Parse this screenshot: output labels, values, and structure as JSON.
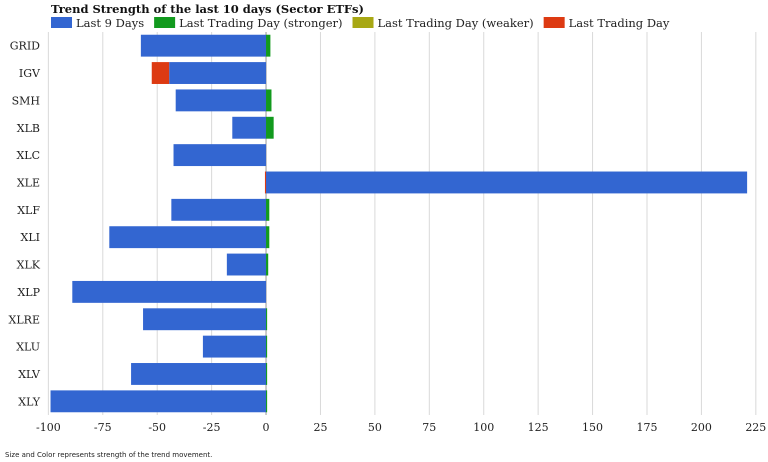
{
  "chart_data": {
    "type": "bar",
    "orientation": "horizontal",
    "stacked": true,
    "title": "Trend Strength of the last 10 days (Sector ETFs)",
    "xlabel": "",
    "ylabel": "",
    "xlim": [
      -102,
      226
    ],
    "xticks": [
      -100,
      -75,
      -50,
      -25,
      0,
      25,
      50,
      75,
      100,
      125,
      150,
      175,
      200,
      225
    ],
    "grid": true,
    "legend_position": "top-left",
    "categories": [
      "GRID",
      "IGV",
      "SMH",
      "XLB",
      "XLC",
      "XLE",
      "XLF",
      "XLI",
      "XLK",
      "XLP",
      "XLRE",
      "XLU",
      "XLV",
      "XLY"
    ],
    "series": [
      {
        "name": "Last 9 Days",
        "color": "#3366d1",
        "values": [
          -57.5,
          -44.5,
          -41.5,
          -15.5,
          -42.5,
          221,
          -43.5,
          -72,
          -18,
          -89,
          -56.5,
          -29,
          -62,
          -99
        ]
      },
      {
        "name": "Last Trading Day (stronger)",
        "color": "#129a1e",
        "values": [
          2,
          0,
          2.5,
          3.5,
          0,
          0,
          1.5,
          1.5,
          1,
          0,
          0.5,
          0.5,
          0.5,
          0.5
        ]
      },
      {
        "name": "Last Trading Day (weaker)",
        "color": "#a8a814",
        "values": [
          0,
          0,
          0,
          0,
          0,
          0,
          0,
          0,
          0,
          0,
          0,
          0,
          0,
          0
        ]
      },
      {
        "name": "Last Trading Day",
        "color": "#dd3a12",
        "values": [
          0,
          -8,
          0,
          0,
          0,
          -0.5,
          0,
          0,
          0,
          0,
          0,
          0,
          0,
          0
        ]
      }
    ]
  },
  "footnote": "Size and Color represents strength of the trend movement."
}
